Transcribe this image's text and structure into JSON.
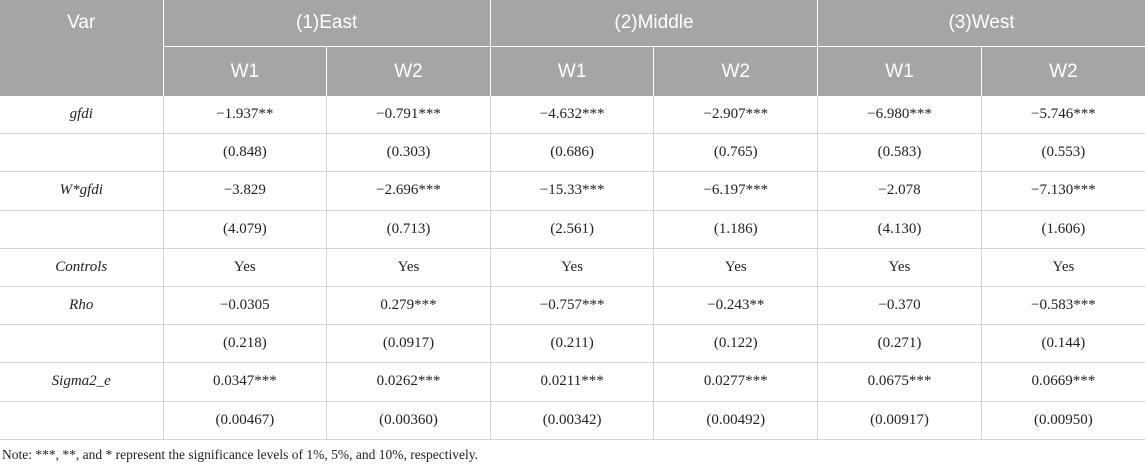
{
  "header": {
    "var": "Var",
    "groups": [
      "(1)East",
      "(2)Middle",
      "(3)West"
    ],
    "sub": [
      "W1",
      "W2",
      "W1",
      "W2",
      "W1",
      "W2"
    ]
  },
  "rows": [
    {
      "var": "gfdi",
      "cells": [
        "−1.937**",
        "−0.791***",
        "−4.632***",
        "−2.907***",
        "−6.980***",
        "−5.746***"
      ]
    },
    {
      "var": "",
      "cells": [
        "(0.848)",
        "(0.303)",
        "(0.686)",
        "(0.765)",
        "(0.583)",
        "(0.553)"
      ]
    },
    {
      "var": "W*gfdi",
      "cells": [
        "−3.829",
        "−2.696***",
        "−15.33***",
        "−6.197***",
        "−2.078",
        "−7.130***"
      ]
    },
    {
      "var": "",
      "cells": [
        "(4.079)",
        "(0.713)",
        "(2.561)",
        "(1.186)",
        "(4.130)",
        "(1.606)"
      ]
    },
    {
      "var": "Controls",
      "cells": [
        "Yes",
        "Yes",
        "Yes",
        "Yes",
        "Yes",
        "Yes"
      ]
    },
    {
      "var": "Rho",
      "cells": [
        "−0.0305",
        "0.279***",
        "−0.757***",
        "−0.243**",
        "−0.370",
        "−0.583***"
      ]
    },
    {
      "var": "",
      "cells": [
        "(0.218)",
        "(0.0917)",
        "(0.211)",
        "(0.122)",
        "(0.271)",
        "(0.144)"
      ]
    },
    {
      "var": "Sigma2_e",
      "cells": [
        "0.0347***",
        "0.0262***",
        "0.0211***",
        "0.0277***",
        "0.0675***",
        "0.0669***"
      ]
    },
    {
      "var": "",
      "cells": [
        "(0.00467)",
        "(0.00360)",
        "(0.00342)",
        "(0.00492)",
        "(0.00917)",
        "(0.00950)"
      ]
    }
  ],
  "note": "Note: ***, **, and * represent the significance levels of 1%, 5%, and 10%, respectively.",
  "colors": {
    "header_bg": "#a5a5a5",
    "header_text": "#ffffff",
    "grid": "#d4d4d4"
  }
}
